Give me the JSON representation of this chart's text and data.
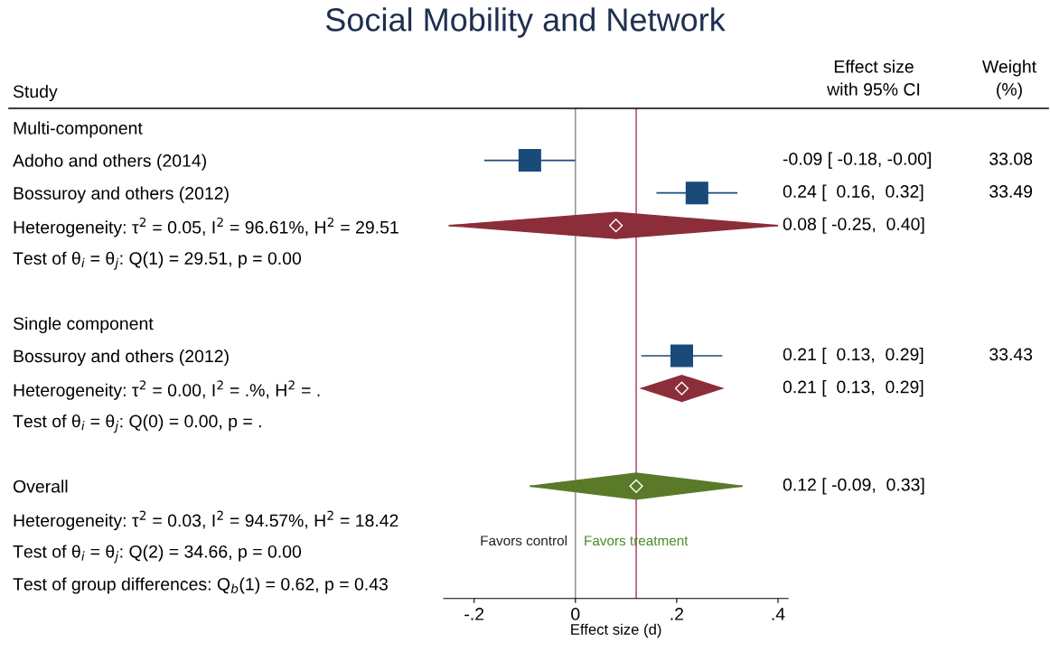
{
  "chart_data": {
    "type": "scatter",
    "orientation": "horizontal",
    "title": "Social Mobility and Network",
    "ylabel": "Study",
    "xlabel": "Effect size (d)",
    "categories": [
      "Multi-component",
      "Adoho and others (2014)",
      "Bossuroy and others (2012)",
      "Heterogeneity: τ$^{2}$ = 0.05, I$^{2}$ = 96.61%, H$^{2}$ = 29.51",
      "Test of θ$_{i}$ = θ$_{j}$: Q(1) = 29.51, p = 0.00",
      null,
      "Single component",
      "Bossuroy and others (2012)",
      "Heterogeneity: τ$^{2}$ = 0.00, I$^{2}$ = .%, H$^{2}$ = .",
      "Test of θ$_{i}$ = θ$_{j}$: Q(0) = 0.00, p = .",
      null,
      "Overall",
      "Heterogeneity: τ$^{2}$ = 0.03, I$^{2}$ = 94.57%, H$^{2}$ = 18.42",
      "Test of θ$_{i}$ = θ$_{j}$: Q(2) = 34.66, p = 0.00",
      "Test of group differences: Q$_{b}$(1) = 0.62, p = 0.43"
    ],
    "series": [
      {
        "type": "scatter",
        "marker": "square",
        "color": "#1a4a7a",
        "values": [
          null,
          -0.09,
          0.24,
          null,
          null,
          null,
          null,
          0.21,
          null,
          null,
          null,
          null,
          null,
          null,
          null
        ],
        "errors": [
          null,
          [
            -0.18,
            -0.0
          ],
          [
            0.16,
            0.32
          ],
          null,
          null,
          null,
          null,
          [
            0.13,
            0.29
          ],
          null,
          null,
          null,
          null,
          null,
          null,
          null
        ]
      },
      {
        "type": "scatter",
        "marker": "diamond",
        "color": "#8b2e3a",
        "values": [
          null,
          null,
          null,
          0.08,
          null,
          null,
          null,
          null,
          0.21,
          null,
          null,
          null,
          null,
          null,
          null
        ],
        "errors": [
          null,
          null,
          null,
          [
            -0.25,
            0.4
          ],
          null,
          null,
          null,
          null,
          [
            0.13,
            0.29
          ],
          null,
          null,
          null,
          null,
          null,
          null
        ]
      },
      {
        "type": "scatter",
        "marker": "diamond",
        "color": "#5a7a2a",
        "values": [
          null,
          null,
          null,
          null,
          null,
          null,
          null,
          null,
          null,
          null,
          null,
          0.12,
          null,
          null,
          null
        ],
        "errors": [
          null,
          null,
          null,
          null,
          null,
          null,
          null,
          null,
          null,
          null,
          null,
          [
            -0.09,
            0.33
          ],
          null,
          null,
          null
        ]
      }
    ],
    "xlim": [
      -0.26,
      0.42
    ],
    "xticks": [
      {
        "value": -0.2,
        "label": "-.2"
      },
      0,
      {
        "value": 0.2,
        "label": ".2"
      },
      {
        "value": 0.4,
        "label": ".4"
      }
    ],
    "ref_lines": [
      {
        "axis": "x",
        "value": 0,
        "label": null,
        "color": "#888888"
      },
      {
        "axis": "x",
        "value": 0.12,
        "label": null,
        "color": "#b0305a"
      }
    ],
    "annotations": [
      "Effect size\nwith 95% CI",
      "Weight\n(%)",
      "Favors control",
      "Favors treatment",
      "-0.09 [ -0.18, -0.00]",
      "0.24 [  0.16,  0.32]",
      "0.08 [ -0.25,  0.40]",
      "0.21 [  0.13,  0.29]",
      "0.21 [  0.13,  0.29]",
      "0.12 [ -0.09,  0.33]",
      "33.08",
      "33.49",
      "33.43"
    ]
  }
}
